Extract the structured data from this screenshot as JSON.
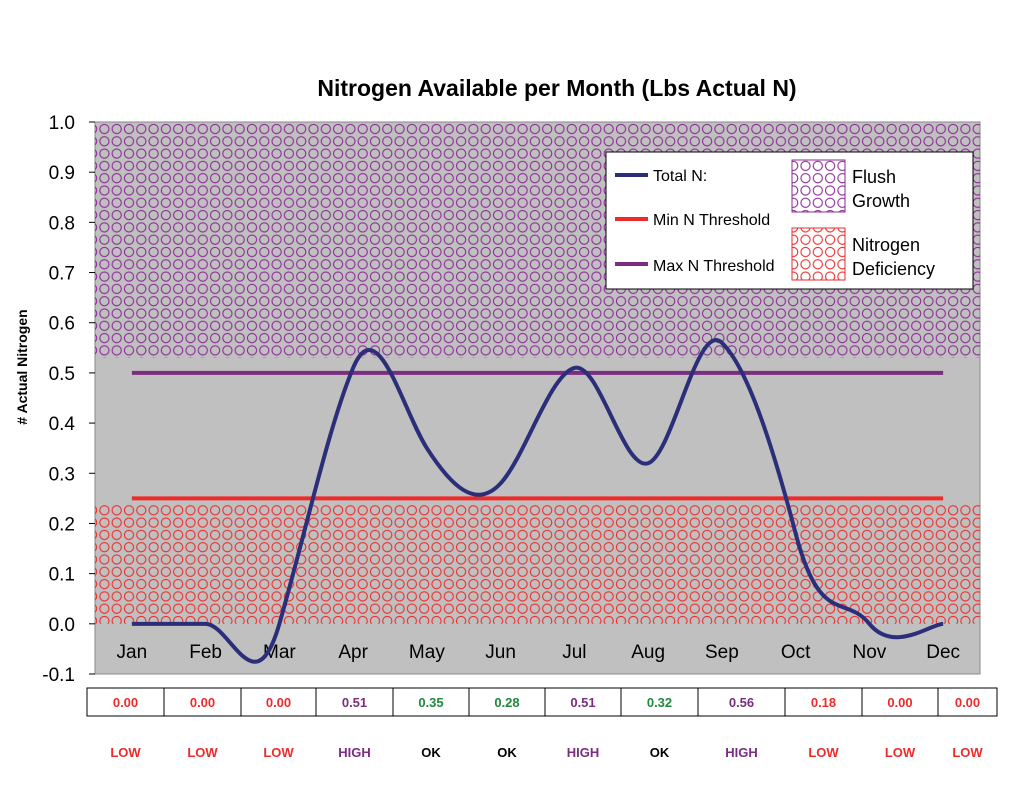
{
  "chart_data": {
    "type": "line",
    "title": "Nitrogen Available per Month (Lbs Actual N)",
    "xlabel": "",
    "ylabel": "# Actual Nitrogen",
    "ylim": [
      -0.1,
      1.0
    ],
    "yticks": [
      "1.0",
      "0.9",
      "0.8",
      "0.7",
      "0.6",
      "0.5",
      "0.4",
      "0.3",
      "0.2",
      "0.1",
      "0.0",
      "-0.1"
    ],
    "categories": [
      "Jan",
      "Feb",
      "Mar",
      "Apr",
      "May",
      "Jun",
      "Jul",
      "Aug",
      "Sep",
      "Oct",
      "Nov",
      "Dec"
    ],
    "series": [
      {
        "name": "Total N:",
        "color": "#2b2f7a",
        "values": [
          0.0,
          0.0,
          0.0,
          0.51,
          0.35,
          0.28,
          0.51,
          0.32,
          0.56,
          0.18,
          0.0,
          0.0
        ],
        "smooth": true
      },
      {
        "name": "Min N Threshold",
        "color": "#ee2b2b",
        "values": [
          0.25,
          0.25,
          0.25,
          0.25,
          0.25,
          0.25,
          0.25,
          0.25,
          0.25,
          0.25,
          0.25,
          0.25
        ]
      },
      {
        "name": "Max N Threshold",
        "color": "#7b2c83",
        "values": [
          0.5,
          0.5,
          0.5,
          0.5,
          0.5,
          0.5,
          0.5,
          0.5,
          0.5,
          0.5,
          0.5,
          0.5
        ]
      }
    ],
    "areas": [
      {
        "name": "Flush Growth",
        "color": "#8a2a94",
        "range": [
          0.53,
          1.0
        ]
      },
      {
        "name": "Nitrogen Deficiency",
        "color": "#ee2b2b",
        "range": [
          0.0,
          0.24
        ]
      }
    ],
    "legend_position": "top-right",
    "background": "#c0c0c0",
    "grid": false
  },
  "table": {
    "values": [
      "0.00",
      "0.00",
      "0.00",
      "0.51",
      "0.35",
      "0.28",
      "0.51",
      "0.32",
      "0.56",
      "0.18",
      "0.00",
      "0.00"
    ],
    "status": [
      "LOW",
      "LOW",
      "LOW",
      "HIGH",
      "OK",
      "OK",
      "HIGH",
      "OK",
      "HIGH",
      "LOW",
      "LOW",
      "LOW"
    ],
    "colors": {
      "LOW": "#ee2b2b",
      "HIGH": "#7b2c83",
      "OK": "#1e8a3c"
    },
    "status_colors": {
      "LOW": "#ee2b2b",
      "HIGH": "#7b2c83",
      "OK": "#000000"
    }
  }
}
